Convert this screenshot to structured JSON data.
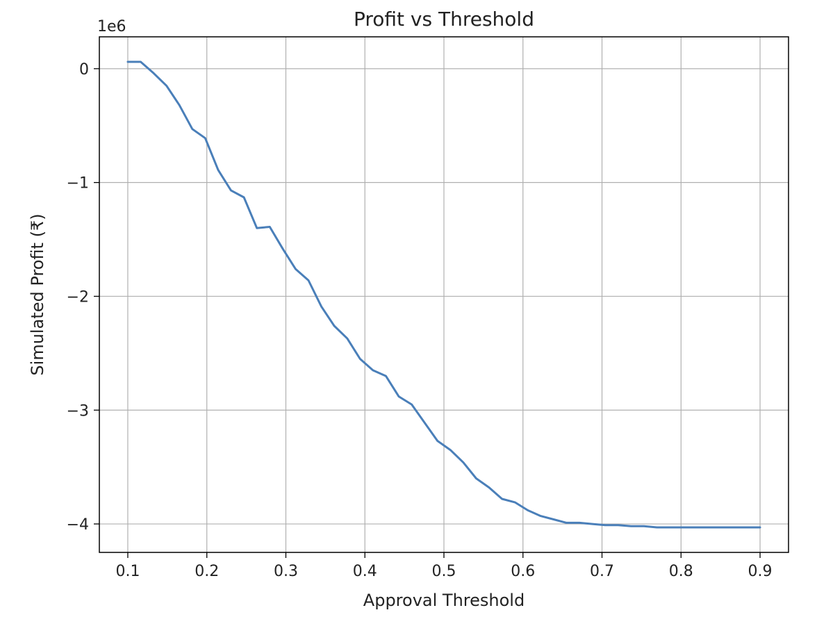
{
  "chart_data": {
    "type": "line",
    "title": "Profit vs Threshold",
    "xlabel": "Approval Threshold",
    "ylabel": "Simulated Profit (₹)",
    "y_offset_label": "1e6",
    "xlim": [
      0.064,
      0.936
    ],
    "ylim": [
      -4.25,
      0.28
    ],
    "xticks": [
      0.1,
      0.2,
      0.3,
      0.4,
      0.5,
      0.6,
      0.7,
      0.8,
      0.9
    ],
    "xtick_labels": [
      "0.1",
      "0.2",
      "0.3",
      "0.4",
      "0.5",
      "0.6",
      "0.7",
      "0.8",
      "0.9"
    ],
    "yticks": [
      0,
      -1,
      -2,
      -3,
      -4
    ],
    "ytick_labels": [
      "0",
      "−1",
      "−2",
      "−3",
      "−4"
    ],
    "grid": true,
    "line_color": "#4a7fb9",
    "series": [
      {
        "x": [
          0.1,
          0.1163,
          0.1327,
          0.149,
          0.1653,
          0.1816,
          0.198,
          0.2143,
          0.2306,
          0.2469,
          0.2633,
          0.2796,
          0.2959,
          0.3122,
          0.3286,
          0.3449,
          0.3612,
          0.3776,
          0.3939,
          0.4102,
          0.4265,
          0.4429,
          0.4592,
          0.4755,
          0.4918,
          0.5082,
          0.5245,
          0.5408,
          0.5571,
          0.5735,
          0.5898,
          0.6061,
          0.6224,
          0.6388,
          0.6551,
          0.6714,
          0.6878,
          0.7041,
          0.7204,
          0.7367,
          0.7531,
          0.7694,
          0.7857,
          0.802,
          0.8184,
          0.8347,
          0.851,
          0.8673,
          0.8837,
          0.9
        ],
        "y": [
          0.06,
          0.06,
          -0.04,
          -0.15,
          -0.32,
          -0.53,
          -0.61,
          -0.89,
          -1.07,
          -1.13,
          -1.4,
          -1.39,
          -1.58,
          -1.76,
          -1.86,
          -2.09,
          -2.26,
          -2.37,
          -2.55,
          -2.65,
          -2.7,
          -2.88,
          -2.95,
          -3.11,
          -3.27,
          -3.35,
          -3.46,
          -3.6,
          -3.68,
          -3.78,
          -3.81,
          -3.88,
          -3.93,
          -3.96,
          -3.99,
          -3.99,
          -4.0,
          -4.01,
          -4.01,
          -4.02,
          -4.02,
          -4.03,
          -4.03,
          -4.03,
          -4.03,
          -4.03,
          -4.03,
          -4.03,
          -4.03,
          -4.03
        ]
      }
    ]
  }
}
